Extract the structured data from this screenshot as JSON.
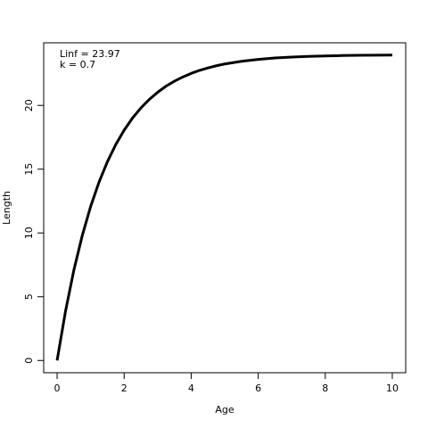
{
  "chart_data": {
    "type": "line",
    "x_label": "Age",
    "y_label": "Length",
    "annotations": [
      "Linf = 23.97",
      "k = 0.7"
    ],
    "x": [
      0,
      0.25,
      0.5,
      0.75,
      1,
      1.25,
      1.5,
      1.75,
      2,
      2.25,
      2.5,
      2.75,
      3,
      3.25,
      3.5,
      3.75,
      4,
      4.25,
      4.5,
      4.75,
      5,
      5.5,
      6,
      6.5,
      7,
      7.5,
      8,
      8.5,
      9,
      9.5,
      10
    ],
    "series": [
      {
        "color": "#000000",
        "values": [
          0,
          3.85,
          7.08,
          9.79,
          12.07,
          13.98,
          15.58,
          16.93,
          18.06,
          19.01,
          19.8,
          20.47,
          21.03,
          21.51,
          21.9,
          22.23,
          22.51,
          22.75,
          22.94,
          23.11,
          23.25,
          23.46,
          23.61,
          23.72,
          23.79,
          23.84,
          23.88,
          23.91,
          23.93,
          23.94,
          23.95
        ]
      }
    ],
    "xlim": [
      -0.4,
      10.4
    ],
    "xticks": [
      0,
      2,
      4,
      6,
      8,
      10
    ],
    "ylim": [
      -0.96,
      24.91
    ],
    "yticks": [
      0,
      5,
      10,
      15,
      20
    ],
    "grid": false
  }
}
